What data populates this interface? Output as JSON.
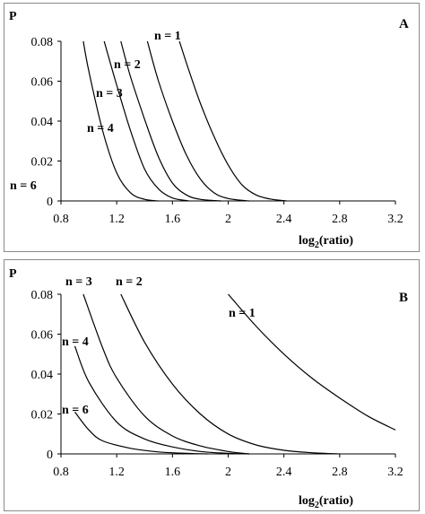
{
  "chart_data": [
    {
      "type": "line",
      "panel_label": "A",
      "ylabel": "P",
      "xlabel_main": "log",
      "xlabel_sub": "2",
      "xlabel_rest": "(ratio)",
      "xlim": [
        0.8,
        3.2
      ],
      "ylim": [
        0,
        0.08
      ],
      "x_ticks": [
        "0.8",
        "1.2",
        "1.6",
        "2",
        "2.4",
        "2.8",
        "3.2"
      ],
      "y_ticks": [
        "0",
        "0.02",
        "0.04",
        "0.06",
        "0.08"
      ],
      "grid": false,
      "series": [
        {
          "name": "n = 1",
          "points": [
            [
              1.65,
              0.08
            ],
            [
              1.72,
              0.065
            ],
            [
              1.8,
              0.049
            ],
            [
              1.9,
              0.032
            ],
            [
              2.0,
              0.018
            ],
            [
              2.1,
              0.008
            ],
            [
              2.2,
              0.003
            ],
            [
              2.3,
              0.001
            ],
            [
              2.42,
              0.0
            ]
          ]
        },
        {
          "name": "n = 2",
          "points": [
            [
              1.42,
              0.08
            ],
            [
              1.5,
              0.06
            ],
            [
              1.6,
              0.04
            ],
            [
              1.7,
              0.023
            ],
            [
              1.8,
              0.011
            ],
            [
              1.9,
              0.004
            ],
            [
              2.0,
              0.0012
            ],
            [
              2.15,
              0.0
            ]
          ]
        },
        {
          "name": "n = 3",
          "points": [
            [
              1.23,
              0.08
            ],
            [
              1.3,
              0.062
            ],
            [
              1.4,
              0.041
            ],
            [
              1.5,
              0.022
            ],
            [
              1.6,
              0.009
            ],
            [
              1.7,
              0.003
            ],
            [
              1.8,
              0.0008
            ],
            [
              1.95,
              0.0
            ]
          ]
        },
        {
          "name": "n = 4",
          "points": [
            [
              1.11,
              0.08
            ],
            [
              1.2,
              0.058
            ],
            [
              1.3,
              0.035
            ],
            [
              1.4,
              0.016
            ],
            [
              1.5,
              0.006
            ],
            [
              1.6,
              0.0015
            ],
            [
              1.72,
              0.0
            ]
          ]
        },
        {
          "name": "n = 6",
          "points": [
            [
              0.96,
              0.08
            ],
            [
              1.0,
              0.065
            ],
            [
              1.1,
              0.035
            ],
            [
              1.2,
              0.014
            ],
            [
              1.3,
              0.004
            ],
            [
              1.4,
              0.0008
            ],
            [
              1.5,
              0.0
            ]
          ]
        }
      ]
    },
    {
      "type": "line",
      "panel_label": "B",
      "ylabel": "P",
      "xlabel_main": "log",
      "xlabel_sub": "2",
      "xlabel_rest": "(ratio)",
      "xlim": [
        0.8,
        3.2
      ],
      "ylim": [
        0,
        0.08
      ],
      "x_ticks": [
        "0.8",
        "1.2",
        "1.6",
        "2",
        "2.4",
        "2.8",
        "3.2"
      ],
      "y_ticks": [
        "0",
        "0.02",
        "0.04",
        "0.06",
        "0.08"
      ],
      "grid": false,
      "series": [
        {
          "name": "n = 1",
          "points": [
            [
              2.0,
              0.08
            ],
            [
              2.2,
              0.064
            ],
            [
              2.4,
              0.05
            ],
            [
              2.6,
              0.038
            ],
            [
              2.8,
              0.028
            ],
            [
              3.0,
              0.019
            ],
            [
              3.2,
              0.012
            ]
          ]
        },
        {
          "name": "n = 2",
          "points": [
            [
              1.23,
              0.08
            ],
            [
              1.4,
              0.056
            ],
            [
              1.6,
              0.035
            ],
            [
              1.8,
              0.02
            ],
            [
              2.0,
              0.01
            ],
            [
              2.2,
              0.0045
            ],
            [
              2.4,
              0.0018
            ],
            [
              2.6,
              0.0006
            ],
            [
              2.8,
              0.0
            ]
          ]
        },
        {
          "name": "n = 3",
          "points": [
            [
              0.96,
              0.08
            ],
            [
              1.1,
              0.053
            ],
            [
              1.2,
              0.038
            ],
            [
              1.4,
              0.019
            ],
            [
              1.6,
              0.009
            ],
            [
              1.8,
              0.004
            ],
            [
              2.0,
              0.0012
            ],
            [
              2.15,
              0.0
            ]
          ]
        },
        {
          "name": "n = 4",
          "points": [
            [
              0.9,
              0.054
            ],
            [
              1.0,
              0.036
            ],
            [
              1.2,
              0.016
            ],
            [
              1.4,
              0.0075
            ],
            [
              1.6,
              0.0035
            ],
            [
              1.8,
              0.0012
            ],
            [
              2.0,
              0.0003
            ],
            [
              2.15,
              0.0
            ]
          ]
        },
        {
          "name": "n = 6",
          "points": [
            [
              0.9,
              0.021
            ],
            [
              1.0,
              0.012
            ],
            [
              1.1,
              0.0065
            ],
            [
              1.3,
              0.0028
            ],
            [
              1.5,
              0.001
            ],
            [
              1.7,
              0.0003
            ],
            [
              1.85,
              0.0
            ]
          ]
        }
      ]
    }
  ]
}
